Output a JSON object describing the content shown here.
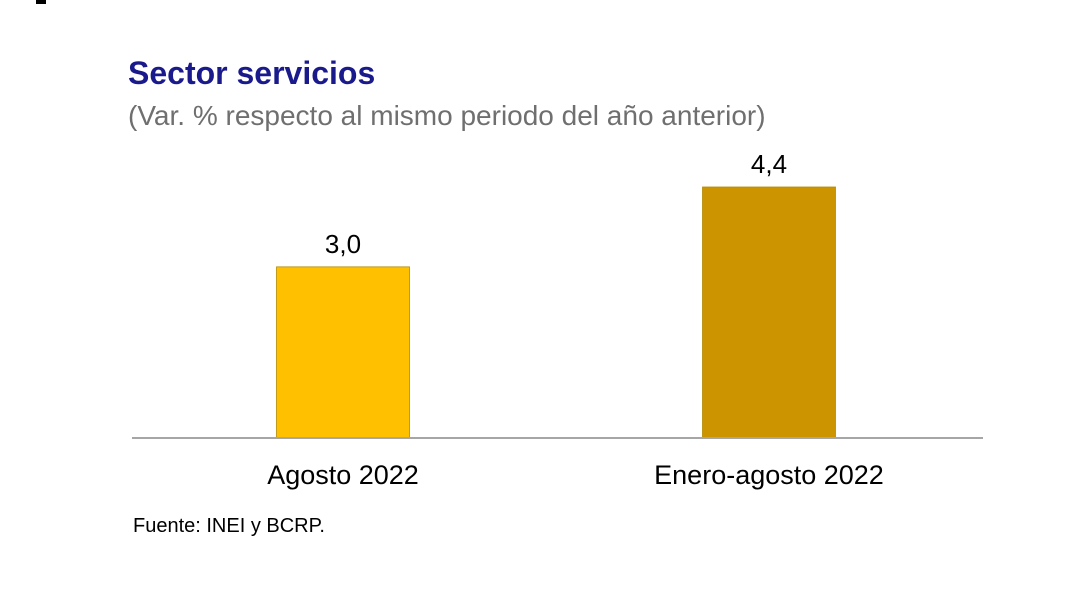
{
  "chart_data": {
    "type": "bar",
    "title": "Sector servicios",
    "subtitle": "(Var. % respecto al mismo periodo del año anterior)",
    "categories": [
      "Agosto 2022",
      "Enero-agosto 2022"
    ],
    "values": [
      3.0,
      4.4
    ],
    "value_labels": [
      "3,0",
      "4,4"
    ],
    "colors": [
      "#ffc000",
      "#cc9500"
    ],
    "ylim": [
      0,
      4.4
    ],
    "grid": false,
    "source": "Fuente: INEI y BCRP."
  }
}
